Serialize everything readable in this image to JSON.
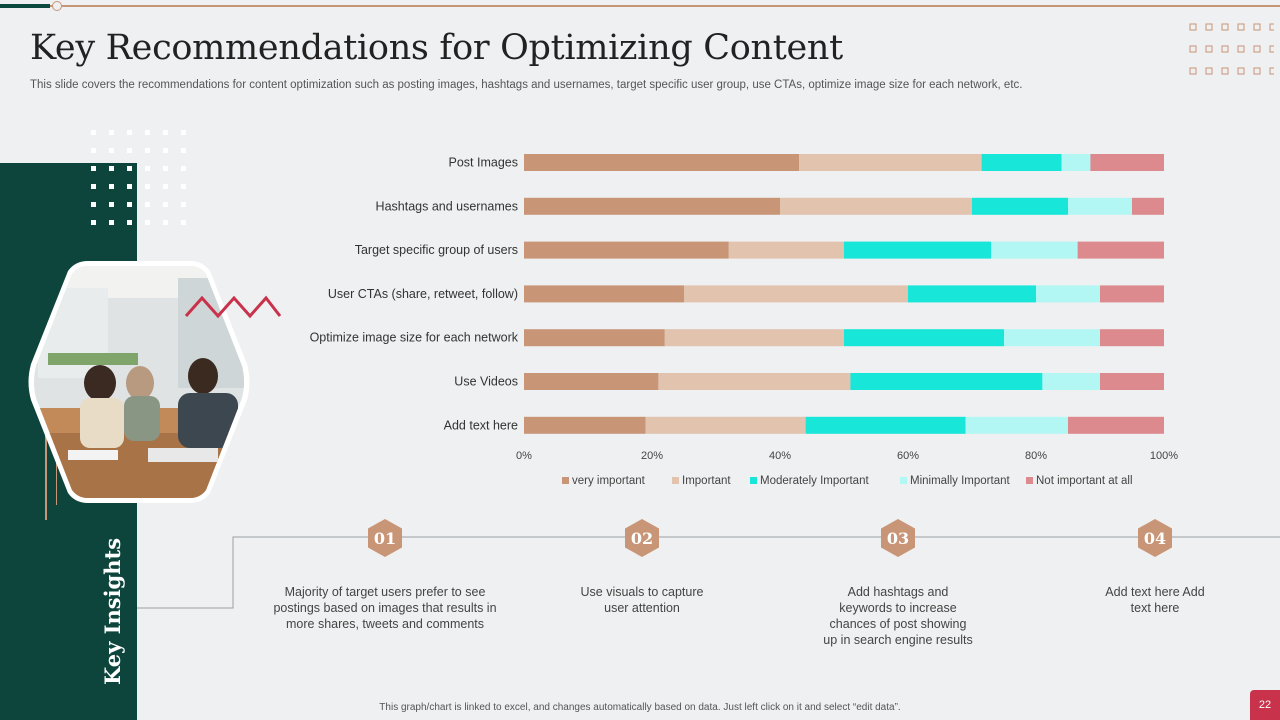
{
  "slide": {
    "title": "Key Recommendations for Optimizing Content",
    "subtitle": "This slide covers the recommendations for content optimization such as posting images, hashtags and usernames, target specific user group, use CTAs, optimize image size for each network, etc.",
    "sidebar_label": "Key Insights",
    "footer": "This graph/chart is linked to excel, and changes automatically based on data. Just left click on it and select “edit data”.",
    "page_number": "22"
  },
  "colors": {
    "dark_green": "#0d453d",
    "accent": "#c99577",
    "page_badge": "#c8324a"
  },
  "insights": [
    {
      "number": "01",
      "text": "Majority of target users prefer to see postings based on images that results in more shares, tweets and comments"
    },
    {
      "number": "02",
      "text": "Use visuals to capture user attention"
    },
    {
      "number": "03",
      "text": "Add hashtags and keywords to increase chances of post showing up in search engine results"
    },
    {
      "number": "04",
      "text": "Add text here Add text here"
    }
  ],
  "chart_data": {
    "type": "bar",
    "orientation": "horizontal",
    "stacked": "100%",
    "categories": [
      "Post Images",
      "Hashtags and usernames",
      "Target  specific group of users",
      "User CTAs (share,  retweet,  follow)",
      "Optimize image size for each network",
      "Use Videos",
      "Add text here"
    ],
    "series": [
      {
        "name": "very important",
        "color": "#c99577",
        "values": [
          43,
          40,
          32,
          25,
          22,
          21,
          19
        ]
      },
      {
        "name": "Important",
        "color": "#e2c3ae",
        "values": [
          28.5,
          30,
          18,
          35,
          28,
          30,
          25
        ]
      },
      {
        "name": "Moderately Important",
        "color": "#17e6d9",
        "values": [
          12.5,
          15,
          23,
          20,
          25,
          30,
          25
        ]
      },
      {
        "name": "Minimally Important",
        "color": "#b3f7f4",
        "values": [
          4.5,
          10,
          13.5,
          10,
          15,
          9,
          16
        ]
      },
      {
        "name": "Not important at all",
        "color": "#dd8a8f",
        "values": [
          11.5,
          5,
          13.5,
          10,
          10,
          10,
          15
        ]
      }
    ],
    "xlim": [
      0,
      100
    ],
    "x_ticks": [
      "0%",
      "20%",
      "40%",
      "60%",
      "80%",
      "100%"
    ],
    "legend_position": "bottom",
    "grid": false
  }
}
